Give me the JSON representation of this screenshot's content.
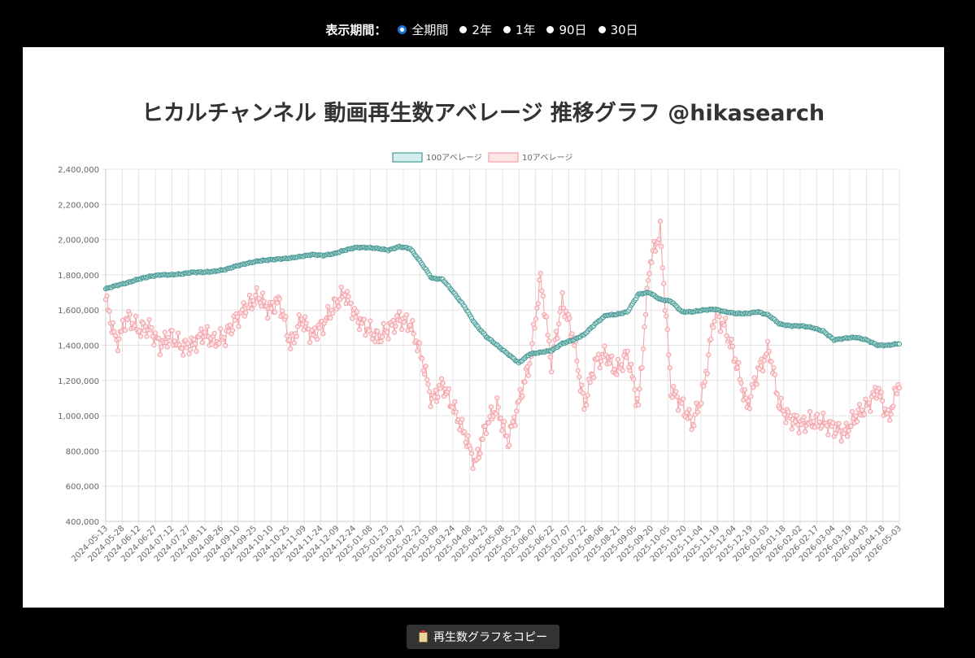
{
  "period": {
    "label": "表示期間：",
    "options": [
      {
        "label": "全期間",
        "selected": true
      },
      {
        "label": "2年",
        "selected": false
      },
      {
        "label": "1年",
        "selected": false
      },
      {
        "label": "90日",
        "selected": false
      },
      {
        "label": "30日",
        "selected": false
      }
    ]
  },
  "copy_button": {
    "label": "再生数グラフをコピー",
    "icon": "clipboard-icon"
  },
  "chart_data": {
    "type": "line",
    "title": "ヒカルチャンネル 動画再生数アベレージ 推移グラフ @hikasearch",
    "xlabel": "",
    "ylabel": "",
    "ylim": [
      400000,
      2400000
    ],
    "y_ticks": [
      "400,000",
      "600,000",
      "800,000",
      "1,000,000",
      "1,200,000",
      "1,400,000",
      "1,600,000",
      "1,800,000",
      "2,000,000",
      "2,200,000",
      "2,400,000"
    ],
    "x_ticks": [
      "2024-05-13",
      "2024-05-28",
      "2024-06-12",
      "2024-06-27",
      "2024-07-12",
      "2024-07-27",
      "2024-08-11",
      "2024-08-26",
      "2024-09-10",
      "2024-09-25",
      "2024-10-10",
      "2024-10-25",
      "2024-11-09",
      "2024-11-24",
      "2024-12-09",
      "2024-12-24",
      "2025-01-08",
      "2025-01-23",
      "2025-02-07",
      "2025-02-22",
      "2025-03-09",
      "2025-03-24",
      "2025-04-08",
      "2025-04-23",
      "2025-05-08",
      "2025-05-23",
      "2025-06-07",
      "2025-06-22",
      "2025-07-07",
      "2025-07-22",
      "2025-08-06",
      "2025-08-21",
      "2025-09-05",
      "2025-09-20",
      "2025-10-05",
      "2025-10-20",
      "2025-11-04",
      "2025-11-19",
      "2025-12-04",
      "2025-12-19",
      "2026-01-03",
      "2026-01-18",
      "2026-02-02",
      "2026-02-17",
      "2026-03-04",
      "2026-03-19",
      "2026-04-03",
      "2026-04-18",
      "2026-05-03"
    ],
    "grid": true,
    "legend_position": "top",
    "series": [
      {
        "name": "100アベレージ",
        "color": "#4a9a96",
        "fill": "#d3eeec",
        "values": [
          1720000,
          1740000,
          1755000,
          1775000,
          1790000,
          1800000,
          1800000,
          1805000,
          1815000,
          1815000,
          1820000,
          1830000,
          1850000,
          1865000,
          1878000,
          1885000,
          1890000,
          1895000,
          1905000,
          1915000,
          1910000,
          1920000,
          1940000,
          1955000,
          1955000,
          1950000,
          1940000,
          1960000,
          1950000,
          1870000,
          1780000,
          1775000,
          1700000,
          1620000,
          1520000,
          1450000,
          1400000,
          1350000,
          1300000,
          1350000,
          1360000,
          1370000,
          1410000,
          1430000,
          1460000,
          1520000,
          1570000,
          1575000,
          1590000,
          1690000,
          1700000,
          1660000,
          1650000,
          1590000,
          1590000,
          1600000,
          1605000,
          1590000,
          1580000,
          1580000,
          1590000,
          1570000,
          1520000,
          1510000,
          1510000,
          1500000,
          1480000,
          1430000,
          1440000,
          1445000,
          1430000,
          1400000,
          1400000,
          1410000
        ]
      },
      {
        "name": "10アベレージ",
        "color": "#f2a0a6",
        "fill": "#fde4e6",
        "values": [
          1660000,
          1410000,
          1560000,
          1490000,
          1500000,
          1400000,
          1450000,
          1390000,
          1400000,
          1470000,
          1420000,
          1450000,
          1550000,
          1620000,
          1680000,
          1600000,
          1650000,
          1400000,
          1550000,
          1450000,
          1520000,
          1620000,
          1700000,
          1560000,
          1500000,
          1440000,
          1490000,
          1550000,
          1520000,
          1350000,
          1080000,
          1180000,
          1040000,
          900000,
          720000,
          950000,
          1050000,
          850000,
          1080000,
          1300000,
          1780000,
          1300000,
          1650000,
          1450000,
          1050000,
          1300000,
          1350000,
          1250000,
          1350000,
          1050000,
          1850000,
          2050000,
          1150000,
          1060000,
          950000,
          1150000,
          1580000,
          1500000,
          1300000,
          1050000,
          1250000,
          1380000,
          1050000,
          980000,
          950000,
          970000,
          960000,
          930000,
          900000,
          1000000,
          1050000,
          1150000,
          980000,
          1200000
        ]
      }
    ]
  }
}
